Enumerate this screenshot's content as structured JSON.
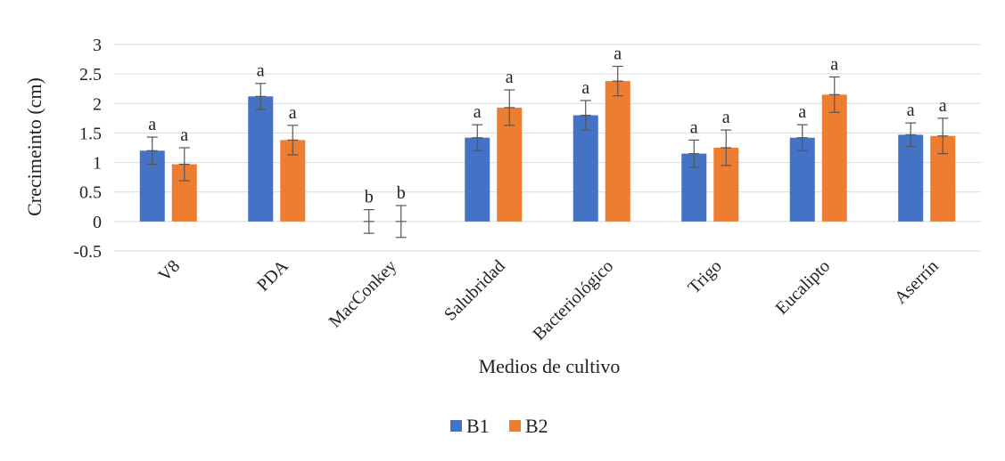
{
  "chart_data": {
    "type": "bar",
    "title": "",
    "xlabel": "Medios de cultivo",
    "ylabel": "Crecimeinto (cm)",
    "ylim": [
      -0.5,
      3
    ],
    "yticks": [
      -0.5,
      0,
      0.5,
      1,
      1.5,
      2,
      2.5,
      3
    ],
    "ytick_labels": [
      "-0.5",
      "0",
      "0.5",
      "1",
      "1.5",
      "2",
      "2.5",
      "3"
    ],
    "grid": "horizontal",
    "legend_position": "bottom",
    "categories": [
      "V8",
      "PDA",
      "MacConkey",
      "Salubridad",
      "Bacteriológico",
      "Trigo",
      "Eucalipto",
      "Aserrín"
    ],
    "series": [
      {
        "name": "B1",
        "color": "#4472C4",
        "values": [
          1.2,
          2.12,
          0,
          1.42,
          1.8,
          1.15,
          1.42,
          1.47
        ],
        "error": [
          0.23,
          0.22,
          0.2,
          0.22,
          0.25,
          0.23,
          0.22,
          0.2
        ],
        "significance": [
          "a",
          "a",
          "b",
          "a",
          "a",
          "a",
          "a",
          "a"
        ]
      },
      {
        "name": "B2",
        "color": "#ED7D31",
        "values": [
          0.97,
          1.38,
          0,
          1.93,
          2.38,
          1.25,
          2.15,
          1.45
        ],
        "error": [
          0.28,
          0.25,
          0.27,
          0.3,
          0.25,
          0.3,
          0.3,
          0.3
        ],
        "significance": [
          "a",
          "a",
          "b",
          "a",
          "a",
          "a",
          "a",
          "a"
        ]
      }
    ]
  },
  "colors": {
    "grid": "#d9d9d9",
    "error_bar": "#555555",
    "text": "#222222"
  }
}
